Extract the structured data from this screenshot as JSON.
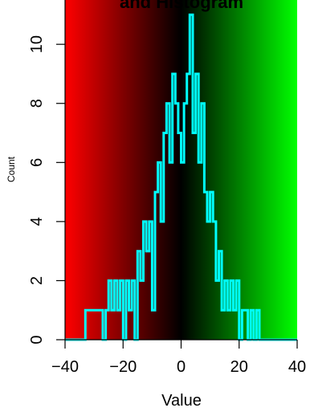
{
  "chart_data": {
    "type": "line",
    "title": "and Histogram",
    "xlabel": "Value",
    "ylabel": "Count",
    "xlim": [
      -40,
      40
    ],
    "ylim": [
      0,
      11.5
    ],
    "x_ticks": [
      "−40",
      "−20",
      "0",
      "20",
      "40"
    ],
    "x_tick_values": [
      -40,
      -20,
      0,
      20,
      40
    ],
    "y_ticks": [
      "0",
      "2",
      "4",
      "6",
      "8",
      "10"
    ],
    "y_tick_values": [
      0,
      2,
      4,
      6,
      8,
      10
    ],
    "background_gradient": [
      "#ff0000",
      "#000000",
      "#00ff00"
    ],
    "line_color": "#00ffff",
    "x": [
      -40,
      -34,
      -33,
      -27,
      -26,
      -25,
      -24,
      -23,
      -22,
      -21,
      -20,
      -19,
      -18,
      -17,
      -16,
      -15,
      -14,
      -13,
      -12,
      -11,
      -10,
      -9,
      -8,
      -7,
      -6,
      -5,
      -4,
      -3,
      -2,
      -1,
      0,
      1,
      2,
      3,
      4,
      5,
      6,
      7,
      8,
      9,
      10,
      11,
      12,
      13,
      14,
      15,
      16,
      17,
      18,
      19,
      20,
      21,
      22,
      23,
      24,
      25,
      26,
      27,
      40
    ],
    "values": [
      0,
      0,
      1,
      0,
      1,
      2,
      1,
      2,
      1,
      2,
      0,
      2,
      1,
      2,
      0,
      3,
      2,
      4,
      3,
      4,
      1,
      5,
      6,
      4,
      7,
      8,
      6,
      9,
      8,
      7,
      6,
      8,
      9,
      11,
      7,
      9,
      6,
      8,
      5,
      4,
      5,
      4,
      2,
      3,
      1,
      2,
      1,
      2,
      1,
      2,
      0,
      1,
      1,
      0,
      1,
      0,
      1,
      0,
      0
    ]
  }
}
